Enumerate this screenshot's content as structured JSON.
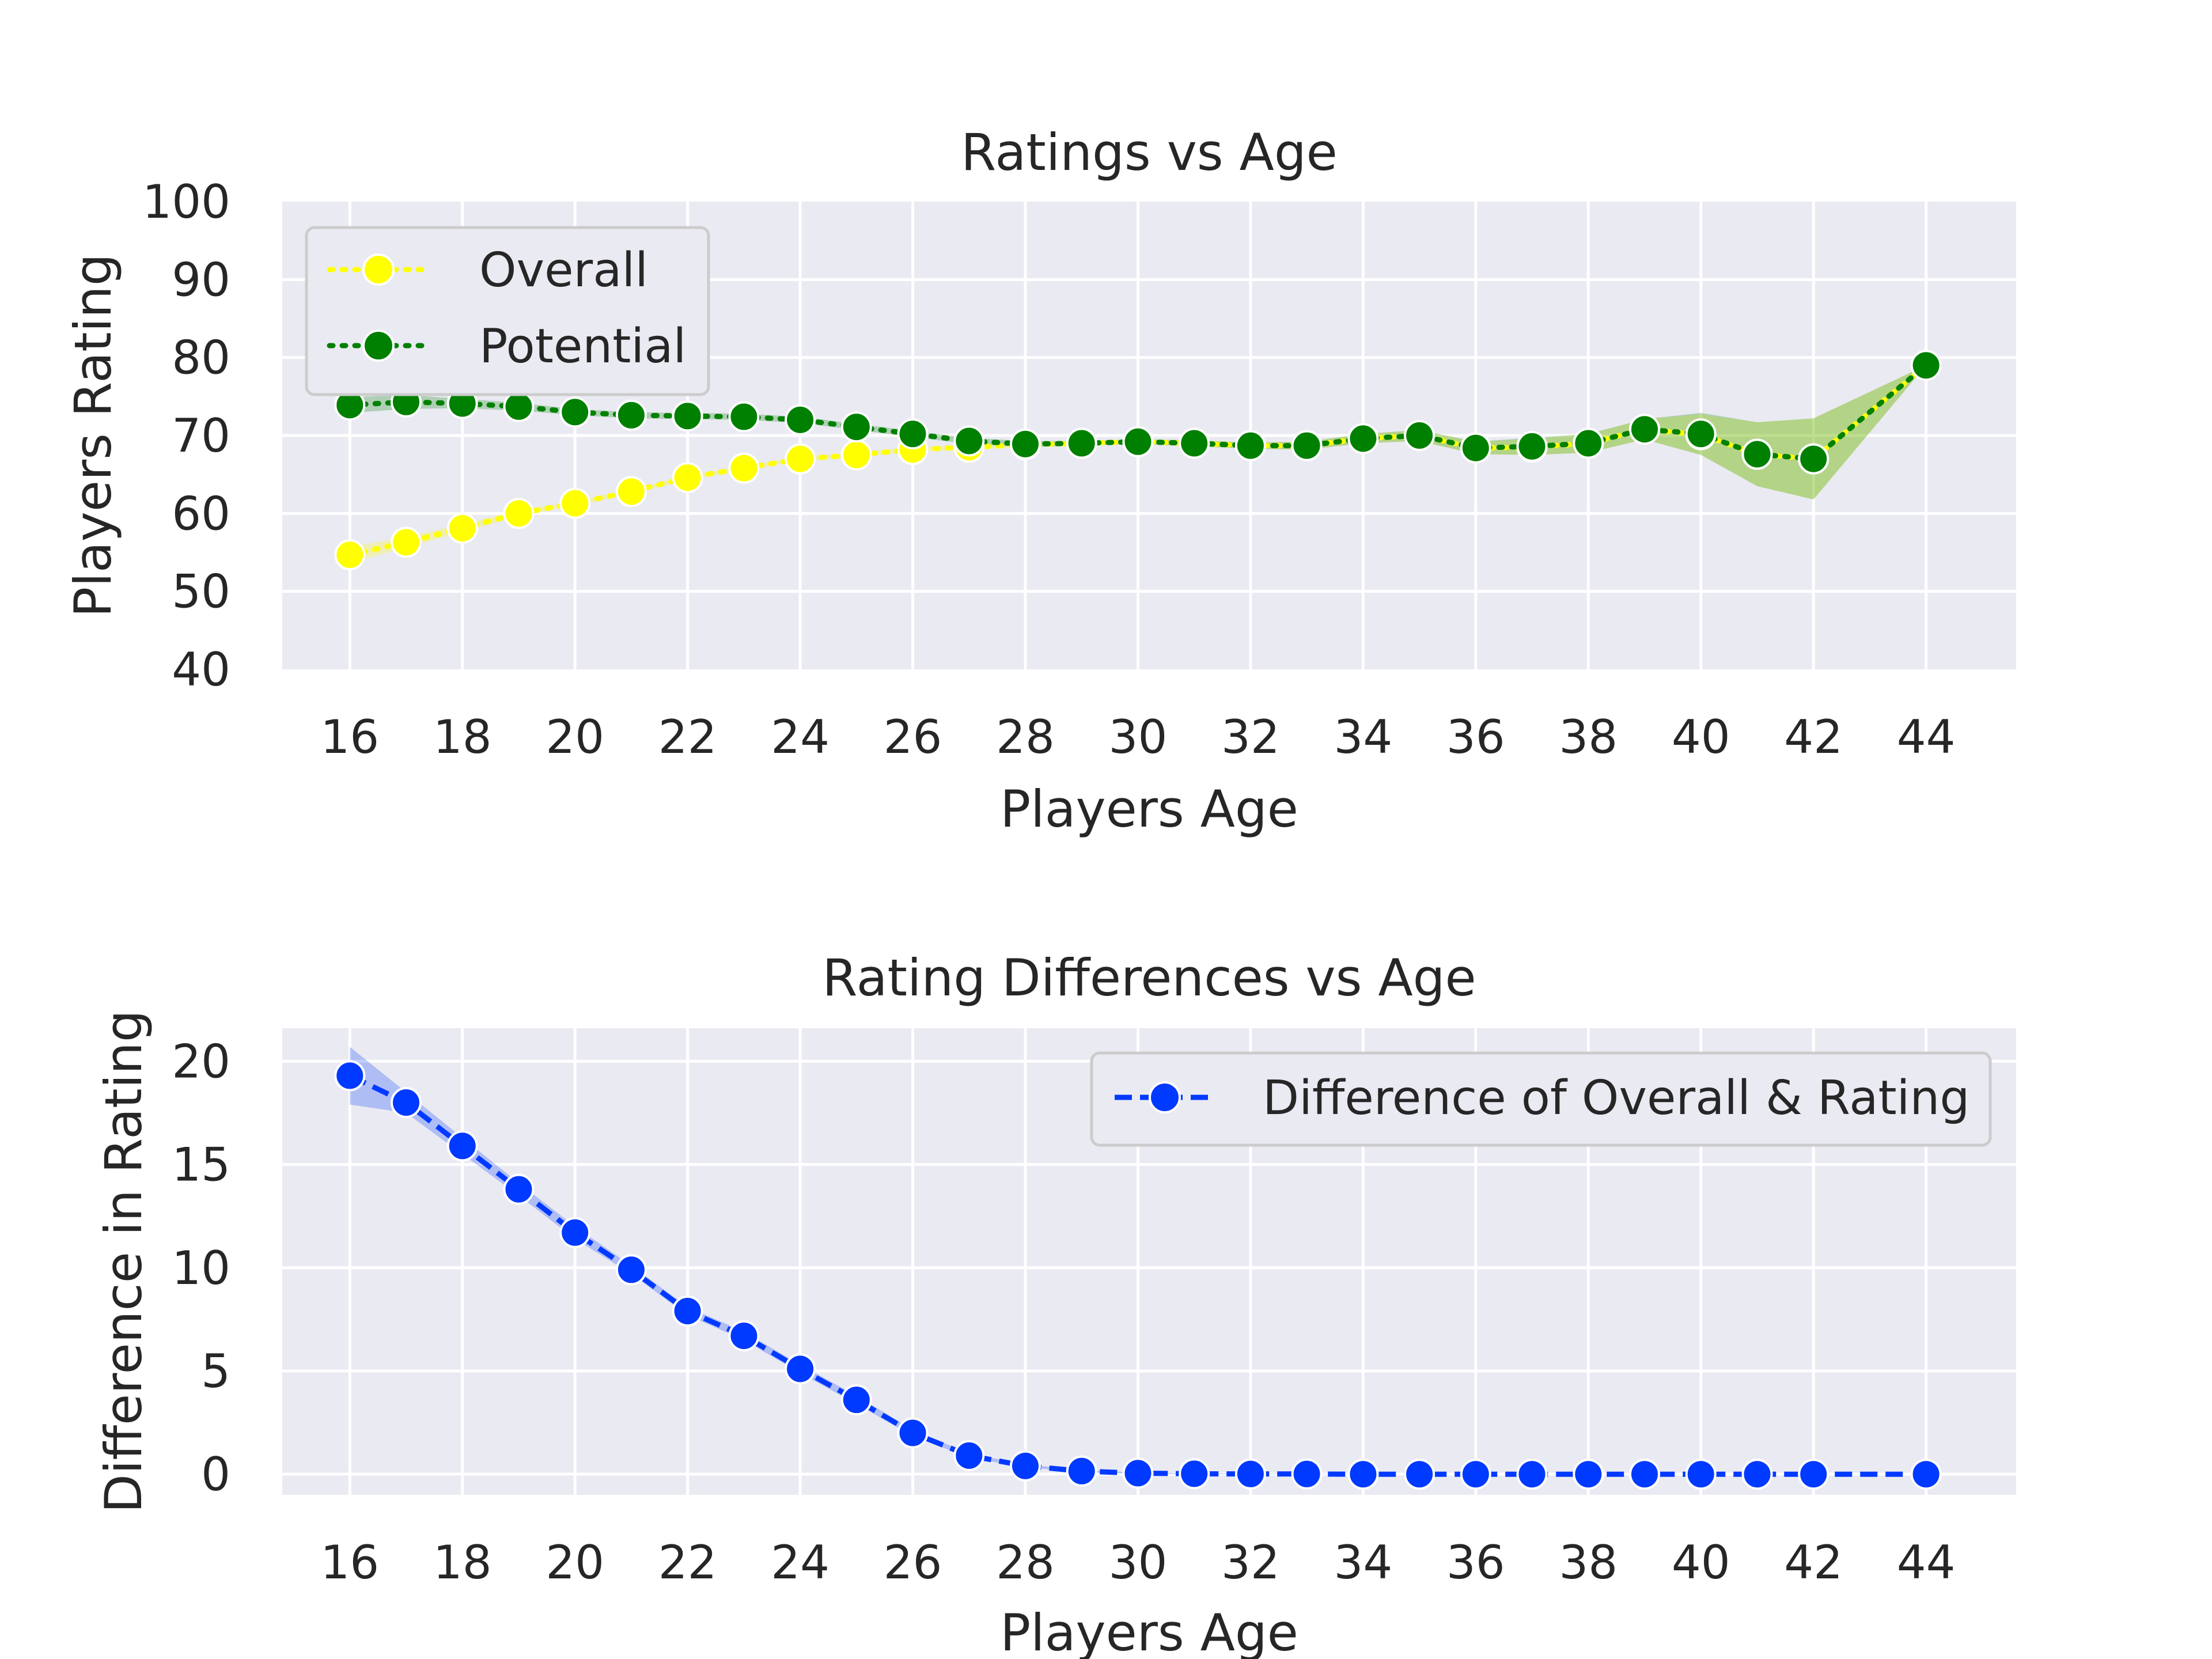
{
  "chart_data": [
    {
      "type": "line",
      "title": "Ratings vs Age",
      "xlabel": "Players Age",
      "ylabel": "Players Rating",
      "x": [
        16,
        17,
        18,
        19,
        20,
        21,
        22,
        23,
        24,
        25,
        26,
        27,
        28,
        29,
        30,
        31,
        32,
        33,
        34,
        35,
        36,
        37,
        38,
        39,
        40,
        41,
        42,
        44
      ],
      "xticks": [
        16,
        18,
        20,
        22,
        24,
        26,
        28,
        30,
        32,
        34,
        36,
        38,
        40,
        42,
        44
      ],
      "yticks": [
        40,
        50,
        60,
        70,
        80,
        90,
        100
      ],
      "xlim": [
        14.8,
        45.6
      ],
      "ylim": [
        40,
        100
      ],
      "grid": true,
      "legend_position": "top-left",
      "series": [
        {
          "name": "Overall",
          "color": "#ffff00",
          "linestyle": "dotted",
          "values": [
            54.7,
            56.3,
            58.1,
            60.0,
            61.3,
            62.8,
            64.6,
            65.8,
            67.0,
            67.5,
            68.2,
            68.5,
            68.8,
            69.0,
            69.2,
            69.0,
            68.7,
            68.7,
            69.6,
            70.0,
            68.4,
            68.5,
            69.0,
            70.8,
            70.1,
            67.6,
            67.0,
            79.0
          ],
          "ci_low": [
            53.7,
            55.6,
            57.6,
            59.6,
            61.0,
            62.5,
            64.3,
            65.5,
            66.7,
            67.2,
            67.9,
            68.2,
            68.5,
            68.7,
            68.9,
            68.6,
            68.3,
            68.2,
            69.0,
            69.3,
            67.6,
            67.5,
            67.8,
            69.5,
            67.5,
            63.5,
            61.8,
            79.0
          ],
          "ci_high": [
            55.7,
            57.0,
            58.6,
            60.4,
            61.6,
            63.1,
            64.9,
            66.1,
            67.3,
            67.8,
            68.5,
            68.8,
            69.1,
            69.3,
            69.5,
            69.4,
            69.1,
            69.2,
            70.2,
            70.7,
            69.2,
            69.5,
            70.2,
            72.1,
            72.7,
            71.7,
            72.2,
            79.0
          ]
        },
        {
          "name": "Potential",
          "color": "#008000",
          "linestyle": "dotted",
          "values": [
            73.9,
            74.3,
            74.1,
            73.7,
            73.0,
            72.6,
            72.5,
            72.4,
            72.0,
            71.1,
            70.2,
            69.3,
            68.9,
            69.0,
            69.2,
            69.0,
            68.7,
            68.7,
            69.6,
            70.0,
            68.4,
            68.6,
            69.0,
            70.8,
            70.2,
            67.6,
            67.0,
            79.0
          ],
          "ci_low": [
            72.9,
            73.4,
            73.5,
            73.2,
            72.6,
            72.2,
            72.1,
            72.0,
            71.6,
            70.7,
            69.8,
            68.9,
            68.5,
            68.7,
            68.9,
            68.6,
            68.3,
            68.2,
            69.0,
            69.3,
            67.6,
            67.5,
            67.8,
            69.5,
            67.5,
            63.5,
            61.8,
            79.0
          ],
          "ci_high": [
            74.9,
            75.2,
            74.7,
            74.2,
            73.4,
            73.0,
            72.9,
            72.8,
            72.4,
            71.5,
            70.6,
            69.7,
            69.3,
            69.3,
            69.5,
            69.4,
            69.1,
            69.2,
            70.2,
            70.7,
            69.2,
            69.7,
            70.2,
            72.1,
            72.9,
            71.7,
            72.2,
            79.0
          ]
        }
      ]
    },
    {
      "type": "line",
      "title": "Rating Differences vs Age",
      "xlabel": "Players Age",
      "ylabel": "Difference in Rating",
      "x": [
        16,
        17,
        18,
        19,
        20,
        21,
        22,
        23,
        24,
        25,
        26,
        27,
        28,
        29,
        30,
        31,
        32,
        33,
        34,
        35,
        36,
        37,
        38,
        39,
        40,
        41,
        42,
        44
      ],
      "xticks": [
        16,
        18,
        20,
        22,
        24,
        26,
        28,
        30,
        32,
        34,
        36,
        38,
        40,
        42,
        44
      ],
      "yticks": [
        0,
        5,
        10,
        15,
        20
      ],
      "xlim": [
        14.8,
        45.6
      ],
      "ylim": [
        -1.0,
        21.6
      ],
      "grid": true,
      "legend_position": "top-right",
      "series": [
        {
          "name": "Difference of Overall & Rating",
          "color": "#0039ff",
          "linestyle": "dashed",
          "values": [
            19.3,
            18.0,
            15.9,
            13.8,
            11.7,
            9.9,
            7.9,
            6.7,
            5.1,
            3.6,
            2.0,
            0.9,
            0.4,
            0.15,
            0.05,
            0.02,
            0.01,
            0.01,
            0.0,
            0.0,
            0.0,
            0.0,
            0.0,
            0.0,
            0.0,
            0.0,
            0.0,
            0.0
          ],
          "ci_low": [
            17.9,
            17.5,
            15.5,
            13.5,
            11.4,
            9.7,
            7.7,
            6.5,
            4.9,
            3.4,
            1.85,
            0.8,
            0.33,
            0.1,
            0.02,
            0.0,
            0.0,
            0.0,
            0.0,
            0.0,
            0.0,
            0.0,
            0.0,
            0.0,
            0.0,
            0.0,
            0.0,
            0.0
          ],
          "ci_high": [
            20.7,
            18.5,
            16.3,
            14.1,
            12.0,
            10.1,
            8.1,
            6.9,
            5.3,
            3.8,
            2.15,
            1.0,
            0.47,
            0.2,
            0.08,
            0.04,
            0.02,
            0.02,
            0.0,
            0.0,
            0.0,
            0.0,
            0.0,
            0.0,
            0.0,
            0.0,
            0.0,
            0.0
          ]
        }
      ]
    }
  ]
}
